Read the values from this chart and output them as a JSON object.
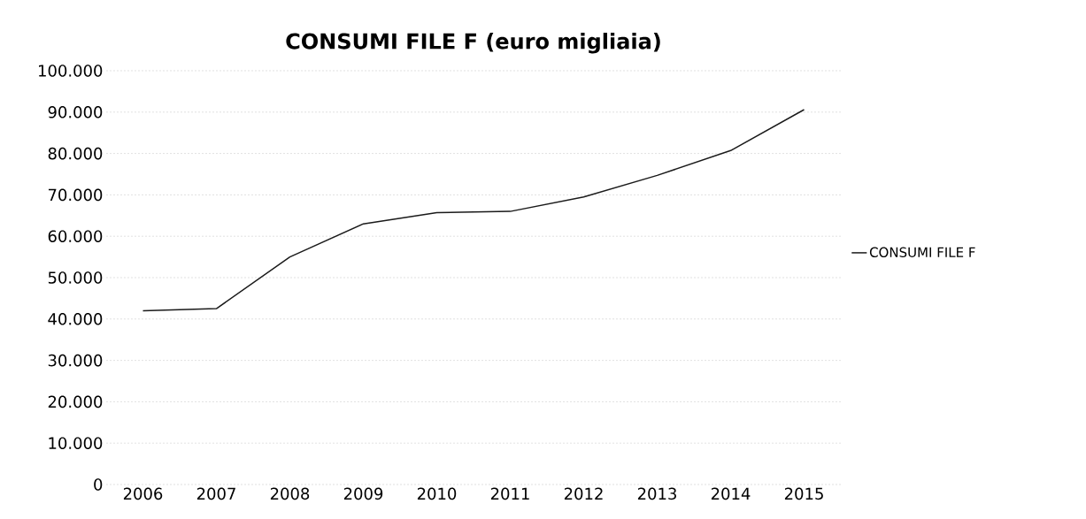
{
  "chart_data": {
    "type": "line",
    "title": "CONSUMI FILE F (euro migliaia)",
    "categories": [
      "2006",
      "2007",
      "2008",
      "2009",
      "2010",
      "2011",
      "2012",
      "2013",
      "2014",
      "2015"
    ],
    "series": [
      {
        "name": "CONSUMI FILE F",
        "color": "#1a1a1a",
        "values": [
          42000,
          42500,
          55000,
          63000,
          65700,
          66000,
          69500,
          74700,
          80700,
          90600
        ]
      }
    ],
    "ylim": [
      0,
      100000
    ],
    "yticks": [
      0,
      {
        "value": 10000,
        "label": "10.000"
      },
      {
        "value": 20000,
        "label": "20.000"
      },
      {
        "value": 30000,
        "label": "30.000"
      },
      {
        "value": 40000,
        "label": "40.000"
      },
      {
        "value": 50000,
        "label": "50.000"
      },
      {
        "value": 60000,
        "label": "60.000"
      },
      {
        "value": 70000,
        "label": "70.000"
      },
      {
        "value": 80000,
        "label": "80.000"
      },
      {
        "value": 90000,
        "label": "90.000"
      },
      {
        "value": 100000,
        "label": "100.000"
      }
    ],
    "grid": "y",
    "legend": "right",
    "marker": "none",
    "line_style": "solid"
  }
}
